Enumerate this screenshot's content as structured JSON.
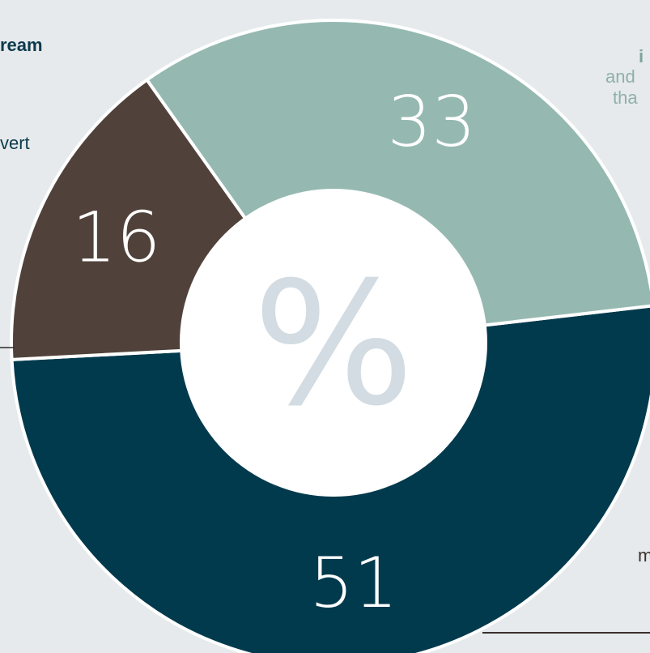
{
  "chart_data": {
    "type": "pie",
    "style": "donut",
    "center_label": "%",
    "slices": [
      {
        "label": "",
        "value": 51,
        "color": "#023a4d",
        "value_label": "51"
      },
      {
        "label": "",
        "value": 33,
        "color": "#95b9b1",
        "value_label": "33"
      },
      {
        "label": "",
        "value": 16,
        "color": "#50423a",
        "value_label": "16"
      }
    ],
    "colors": {
      "background": "#e6eaec",
      "hole": "#ffffff",
      "percent_sign": "#d2dce2",
      "separator": "#ffffff"
    }
  },
  "annotations": {
    "left_top": "ream",
    "left_mid": "vert",
    "right_top": "i",
    "right_line2": "and",
    "right_line3": "tha",
    "right_bottom": "m"
  },
  "annotation_colors": {
    "dark": "#0b3a4b",
    "teal": "#8fb0a8",
    "brown": "#3a302b"
  }
}
